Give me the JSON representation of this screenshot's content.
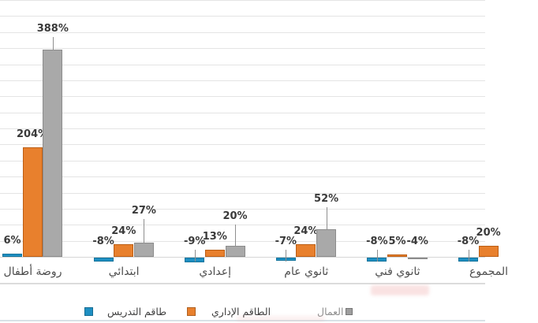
{
  "chart_data": {
    "type": "bar",
    "title": "",
    "xlabel": "",
    "ylabel": "",
    "categories": [
      "روضة أطفال",
      "ابتدائي",
      "إعدادي",
      "ثانوي عام",
      "ثانوي فني",
      "المجموع"
    ],
    "series": [
      {
        "name": "طاقم التدريس",
        "color": "#1E8FC2",
        "border_color": "#14749C",
        "values": [
          6,
          -8,
          -9,
          -7,
          -8,
          -8
        ],
        "labels": [
          "6%",
          "-8%",
          "-9%",
          "-7%",
          "-8%",
          "-8%"
        ]
      },
      {
        "name": "الطاقم الإداري",
        "color": "#E8802D",
        "border_color": "#BC5E14",
        "values": [
          204,
          24,
          13,
          24,
          5,
          20
        ],
        "labels": [
          "204%",
          "24%",
          "13%",
          "24%",
          "5%",
          "20%"
        ]
      },
      {
        "name": "العمال",
        "color": "#A9A9A9",
        "border_color": "#8C8C8C",
        "values": [
          388,
          27,
          20,
          52,
          -4,
          null
        ],
        "labels": [
          "388%",
          "27%",
          "20%",
          "52%",
          "-4%",
          ""
        ]
      }
    ],
    "value_suffix": "%",
    "ylim": [
      0,
      480
    ],
    "gridline_step_pct": 30,
    "grid": true,
    "error_bars": true,
    "legend_position": "bottom",
    "right_edge": "cropped"
  },
  "legend": {
    "items": [
      {
        "label": "طاقم التدريس",
        "color": "#1E8FC2"
      },
      {
        "label": "الطاقم الإداري",
        "color": "#E8802D"
      },
      {
        "label": "العمال",
        "color": "#9E9E9E"
      }
    ]
  }
}
